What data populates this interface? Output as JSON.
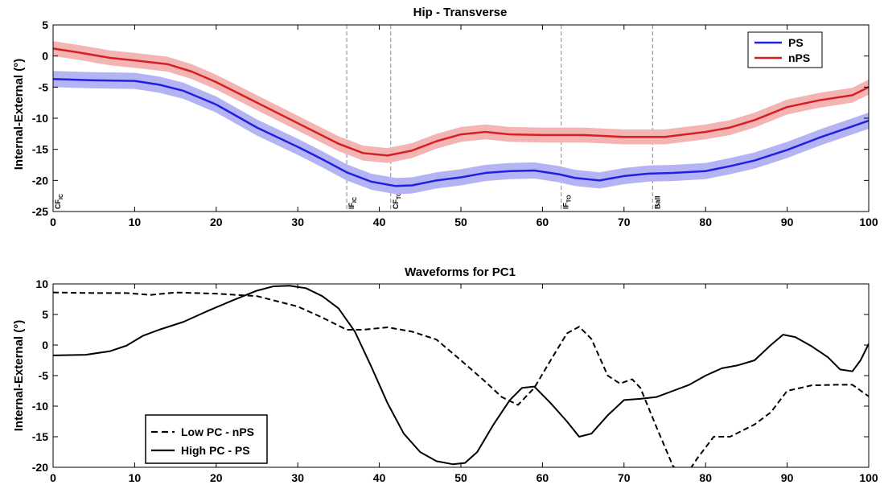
{
  "chart_data": [
    {
      "type": "line",
      "title": "Hip - Transverse",
      "xlabel": "",
      "ylabel": "Internal-External (°)",
      "xlim": [
        0,
        100
      ],
      "ylim": [
        -25,
        5
      ],
      "xticks": [
        0,
        10,
        20,
        30,
        40,
        50,
        60,
        70,
        80,
        90,
        100
      ],
      "yticks": [
        -25,
        -20,
        -15,
        -10,
        -5,
        0,
        5
      ],
      "legend_position": "top-right",
      "series": [
        {
          "name": "PS",
          "color": "#2020e0",
          "band_color": "#b4b4f4",
          "band_halfwidth": 1.3,
          "x": [
            0,
            5,
            10,
            13,
            16,
            20,
            25,
            30,
            33,
            36,
            39,
            42,
            44,
            47,
            50,
            53,
            56,
            59,
            62,
            64,
            67,
            70,
            73,
            76,
            80,
            83,
            86,
            90,
            94,
            98,
            100
          ],
          "y": [
            -3.7,
            -3.9,
            -4.0,
            -4.6,
            -5.6,
            -7.8,
            -11.5,
            -14.6,
            -16.6,
            -18.7,
            -20.2,
            -20.9,
            -20.8,
            -20.0,
            -19.5,
            -18.8,
            -18.5,
            -18.4,
            -19.0,
            -19.6,
            -20.0,
            -19.3,
            -18.9,
            -18.8,
            -18.5,
            -17.7,
            -16.8,
            -15.1,
            -13.1,
            -11.3,
            -10.4
          ]
        },
        {
          "name": "nPS",
          "color": "#d42020",
          "band_color": "#f4b4b4",
          "band_halfwidth": 1.2,
          "x": [
            0,
            3,
            7,
            10,
            14,
            17,
            20,
            25,
            30,
            35,
            38,
            41,
            44,
            47,
            50,
            53,
            56,
            60,
            65,
            70,
            75,
            80,
            83,
            86,
            90,
            94,
            98,
            100
          ],
          "y": [
            1.2,
            0.6,
            -0.3,
            -0.7,
            -1.3,
            -2.5,
            -4.2,
            -7.5,
            -10.8,
            -14.1,
            -15.6,
            -16.0,
            -15.2,
            -13.7,
            -12.6,
            -12.2,
            -12.6,
            -12.7,
            -12.7,
            -13.0,
            -13.0,
            -12.2,
            -11.5,
            -10.3,
            -8.2,
            -7.1,
            -6.3,
            -5.0
          ]
        }
      ],
      "vlines": [
        {
          "x": 0,
          "label_main": "CF",
          "label_sub": "IC"
        },
        {
          "x": 36,
          "label_main": "IF",
          "label_sub": "IC"
        },
        {
          "x": 41.4,
          "label_main": "CF",
          "label_sub": "TO"
        },
        {
          "x": 62.3,
          "label_main": "IF",
          "label_sub": "TO"
        },
        {
          "x": 73.5,
          "label_main": "Ball",
          "label_sub": ""
        }
      ]
    },
    {
      "type": "line",
      "title": "Waveforms for PC1",
      "xlabel": "",
      "ylabel": "Internal-External (°)",
      "xlim": [
        0,
        100
      ],
      "ylim": [
        -20,
        10
      ],
      "xticks": [
        0,
        10,
        20,
        30,
        40,
        50,
        60,
        70,
        80,
        90,
        100
      ],
      "yticks": [
        -20,
        -15,
        -10,
        -5,
        0,
        5,
        10
      ],
      "legend_position": "bottom-left",
      "series": [
        {
          "name": "Low PC - nPS",
          "style": "dashed",
          "color": "#000000",
          "x": [
            0,
            5,
            9,
            12,
            15,
            20,
            25,
            30,
            33,
            36,
            38,
            41,
            44,
            47,
            50,
            53,
            55,
            57,
            59,
            61,
            63,
            64.5,
            66,
            68,
            69.5,
            71,
            72,
            74,
            76,
            77.5,
            79,
            81,
            83,
            86,
            88,
            90,
            93,
            96,
            98,
            100
          ],
          "y": [
            8.6,
            8.5,
            8.5,
            8.2,
            8.6,
            8.4,
            8.0,
            6.3,
            4.5,
            2.5,
            2.5,
            2.9,
            2.2,
            0.9,
            -2.5,
            -6.0,
            -8.5,
            -9.8,
            -7.0,
            -2.5,
            1.9,
            3.0,
            1.0,
            -5.0,
            -6.3,
            -5.6,
            -7.0,
            -13.5,
            -19.8,
            -21.5,
            -18.5,
            -15.0,
            -15.0,
            -13.0,
            -11.0,
            -7.5,
            -6.6,
            -6.5,
            -6.5,
            -8.4
          ]
        },
        {
          "name": "High PC - PS",
          "style": "solid",
          "color": "#000000",
          "x": [
            0,
            4,
            7,
            9,
            11,
            13,
            16,
            19,
            22,
            25,
            27,
            29,
            31,
            33,
            35,
            37,
            39,
            41,
            43,
            45,
            47,
            49,
            50.5,
            52,
            54,
            56,
            57.5,
            59,
            61,
            63,
            64.5,
            66,
            68,
            70,
            72,
            74,
            76,
            78,
            80,
            82,
            84,
            86,
            88,
            89.5,
            91,
            93,
            95,
            96.5,
            98,
            99,
            100
          ],
          "y": [
            -1.7,
            -1.6,
            -1.0,
            -0.1,
            1.5,
            2.5,
            3.8,
            5.6,
            7.3,
            8.9,
            9.6,
            9.7,
            9.3,
            8.0,
            6.0,
            2.2,
            -3.5,
            -9.5,
            -14.5,
            -17.5,
            -19.0,
            -19.5,
            -19.3,
            -17.5,
            -13.0,
            -9.0,
            -7.0,
            -6.8,
            -9.5,
            -12.5,
            -15.0,
            -14.5,
            -11.5,
            -9.0,
            -8.8,
            -8.5,
            -7.5,
            -6.5,
            -5.0,
            -3.8,
            -3.3,
            -2.5,
            0.0,
            1.7,
            1.3,
            -0.2,
            -2.0,
            -4.0,
            -4.3,
            -2.5,
            0.2
          ]
        }
      ],
      "vlines": []
    }
  ]
}
